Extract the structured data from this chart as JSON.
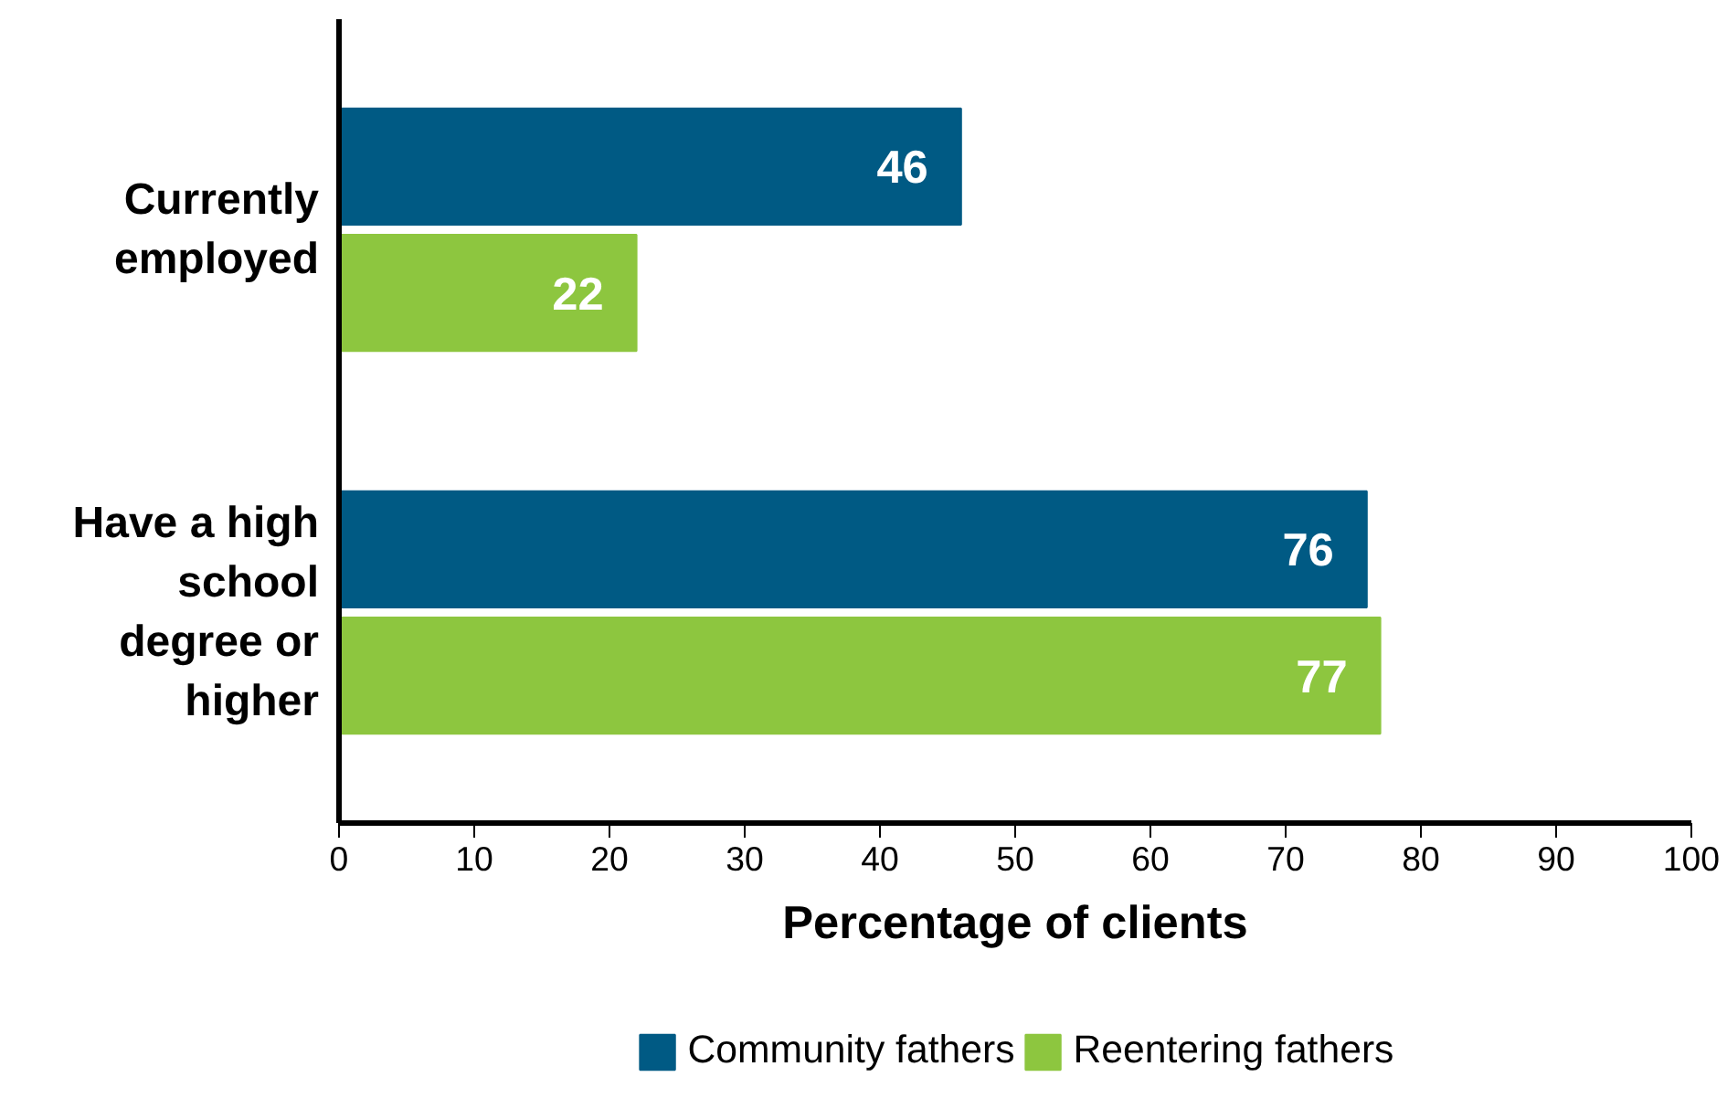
{
  "chart_data": {
    "type": "bar",
    "orientation": "horizontal",
    "xlabel": "Percentage of clients",
    "categories": [
      "Currently employed",
      "Have a high school degree or higher"
    ],
    "series": [
      {
        "name": "Community fathers",
        "color": "#005a84",
        "values": [
          46,
          76
        ]
      },
      {
        "name": "Reentering fathers",
        "color": "#8dc63f",
        "values": [
          22,
          77
        ]
      }
    ],
    "xlim": [
      0,
      100
    ],
    "xticks": [
      0,
      10,
      20,
      30,
      40,
      50,
      60,
      70,
      80,
      90,
      100
    ],
    "data_labels": true,
    "grid": false,
    "legend": "bottom"
  }
}
